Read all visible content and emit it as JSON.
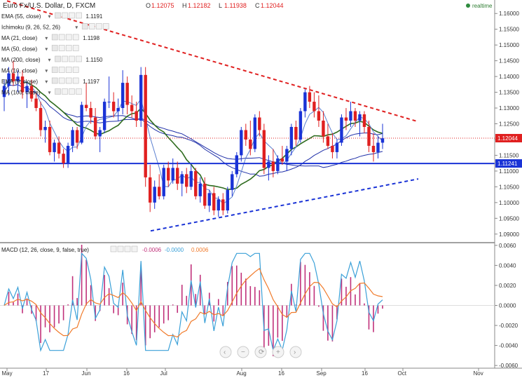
{
  "header": {
    "symbol": "Euro Fx/U.S. Dollar, D, FXCM",
    "ohlc": {
      "o_label": "O",
      "o": "1.12075",
      "h_label": "H",
      "h": "1.12182",
      "l_label": "L",
      "l": "1.11938",
      "c_label": "C",
      "c": "1.12044"
    },
    "realtime": "realtime"
  },
  "indicators": [
    {
      "label": "EMA (55, close)",
      "value": "1.1191",
      "color": "#1f3fbf"
    },
    {
      "label": "Ichimoku (9, 26, 52, 26)",
      "value": "",
      "color": "#555555"
    },
    {
      "label": "MA (21, close)",
      "value": "1.1198",
      "color": "#2e7d32"
    },
    {
      "label": "MA (50, close)",
      "value": "",
      "color": "#555555"
    },
    {
      "label": "MA (200, close)",
      "value": "1.1150",
      "color": "#1f3fbf"
    },
    {
      "label": "MA (10, close)",
      "value": "",
      "color": "#555555"
    },
    {
      "label": "EMA (9, close)",
      "value": "1.1197",
      "color": "#1f3fbf"
    },
    {
      "label": "MA (100, close)",
      "value": "",
      "color": "#555555"
    }
  ],
  "macd_legend": {
    "label": "MACD (12, 26, close, 9, false, true)",
    "v1": "-0.0006",
    "v2": "-0.0000",
    "v3": "0.0006"
  },
  "price_axis": [
    "1.16000",
    "1.15500",
    "1.15000",
    "1.14500",
    "1.14000",
    "1.13500",
    "1.13000",
    "1.12500",
    "1.12000",
    "1.11500",
    "1.11000",
    "1.10500",
    "1.10000",
    "1.09500",
    "1.09000"
  ],
  "price_badges": {
    "last": "1.12044",
    "hline": "1.11241"
  },
  "macd_axis": [
    "0.0060",
    "0.0040",
    "0.0020",
    "0.0000",
    "-0.0020",
    "-0.0040",
    "-0.0060"
  ],
  "time_axis": [
    "May",
    "17",
    "Jun",
    "16",
    "Jul",
    "Aug",
    "16",
    "Sep",
    "16",
    "Oct",
    "Nov"
  ],
  "colors": {
    "up": "#1a33d6",
    "down": "#e02020",
    "ma_green": "#2e6b1e",
    "ma_blue": "#1f2fa8",
    "macd_line": "#3aa0d8",
    "signal_line": "#f07a2a",
    "hist": "#c0307a",
    "res": "#e02020",
    "sup": "#1a33d6"
  },
  "chart_data": {
    "type": "candlestick",
    "x_axis_ticks": [
      "May",
      "17",
      "Jun",
      "16",
      "Jul",
      "Aug",
      "16",
      "Sep",
      "16",
      "Oct",
      "Nov"
    ],
    "y_axis_range": [
      1.0875,
      1.1625
    ],
    "candles_ohlc": [
      [
        1.1335,
        1.139,
        1.129,
        1.137
      ],
      [
        1.137,
        1.143,
        1.134,
        1.141
      ],
      [
        1.141,
        1.145,
        1.137,
        1.1385
      ],
      [
        1.1385,
        1.142,
        1.135,
        1.14
      ],
      [
        1.14,
        1.142,
        1.133,
        1.135
      ],
      [
        1.135,
        1.138,
        1.13,
        1.137
      ],
      [
        1.137,
        1.139,
        1.132,
        1.133
      ],
      [
        1.133,
        1.135,
        1.129,
        1.13
      ],
      [
        1.13,
        1.132,
        1.121,
        1.123
      ],
      [
        1.123,
        1.126,
        1.119,
        1.124
      ],
      [
        1.124,
        1.126,
        1.115,
        1.116
      ],
      [
        1.116,
        1.12,
        1.113,
        1.119
      ],
      [
        1.119,
        1.121,
        1.114,
        1.1155
      ],
      [
        1.1155,
        1.117,
        1.111,
        1.1125
      ],
      [
        1.1125,
        1.119,
        1.111,
        1.118
      ],
      [
        1.118,
        1.124,
        1.116,
        1.123
      ],
      [
        1.123,
        1.124,
        1.117,
        1.119
      ],
      [
        1.119,
        1.132,
        1.1185,
        1.131
      ],
      [
        1.131,
        1.138,
        1.129,
        1.13
      ],
      [
        1.13,
        1.132,
        1.125,
        1.127
      ],
      [
        1.127,
        1.13,
        1.12,
        1.121
      ],
      [
        1.121,
        1.124,
        1.116,
        1.123
      ],
      [
        1.123,
        1.133,
        1.122,
        1.132
      ],
      [
        1.132,
        1.14,
        1.13,
        1.132
      ],
      [
        1.132,
        1.135,
        1.127,
        1.129
      ],
      [
        1.129,
        1.133,
        1.126,
        1.13
      ],
      [
        1.13,
        1.142,
        1.128,
        1.138
      ],
      [
        1.138,
        1.14,
        1.128,
        1.131
      ],
      [
        1.131,
        1.134,
        1.127,
        1.129
      ],
      [
        1.129,
        1.132,
        1.124,
        1.126
      ],
      [
        1.126,
        1.143,
        1.124,
        1.1405
      ],
      [
        1.1405,
        1.143,
        1.105,
        1.108
      ],
      [
        1.108,
        1.112,
        1.097,
        1.1
      ],
      [
        1.1,
        1.107,
        1.098,
        1.105
      ],
      [
        1.105,
        1.109,
        1.101,
        1.102
      ],
      [
        1.102,
        1.112,
        1.101,
        1.111
      ],
      [
        1.111,
        1.113,
        1.105,
        1.107
      ],
      [
        1.107,
        1.114,
        1.106,
        1.111
      ],
      [
        1.111,
        1.113,
        1.104,
        1.106
      ],
      [
        1.106,
        1.11,
        1.102,
        1.109
      ],
      [
        1.109,
        1.111,
        1.103,
        1.105
      ],
      [
        1.105,
        1.112,
        1.104,
        1.11
      ],
      [
        1.11,
        1.111,
        1.101,
        1.102
      ],
      [
        1.102,
        1.108,
        1.1,
        1.106
      ],
      [
        1.106,
        1.108,
        1.098,
        1.099
      ],
      [
        1.099,
        1.104,
        1.097,
        1.103
      ],
      [
        1.103,
        1.105,
        1.096,
        1.0975
      ],
      [
        1.0975,
        1.102,
        1.0955,
        1.101
      ],
      [
        1.101,
        1.103,
        1.096,
        1.0975
      ],
      [
        1.0975,
        1.105,
        1.0965,
        1.104
      ],
      [
        1.104,
        1.11,
        1.102,
        1.109
      ],
      [
        1.109,
        1.116,
        1.108,
        1.115
      ],
      [
        1.115,
        1.124,
        1.113,
        1.123
      ],
      [
        1.123,
        1.125,
        1.118,
        1.12
      ],
      [
        1.12,
        1.126,
        1.115,
        1.117
      ],
      [
        1.117,
        1.128,
        1.116,
        1.127
      ],
      [
        1.127,
        1.129,
        1.121,
        1.123
      ],
      [
        1.123,
        1.125,
        1.109,
        1.111
      ],
      [
        1.111,
        1.115,
        1.107,
        1.113
      ],
      [
        1.113,
        1.117,
        1.108,
        1.11
      ],
      [
        1.11,
        1.115,
        1.109,
        1.114
      ],
      [
        1.114,
        1.118,
        1.112,
        1.113
      ],
      [
        1.113,
        1.118,
        1.11,
        1.117
      ],
      [
        1.117,
        1.125,
        1.115,
        1.124
      ],
      [
        1.124,
        1.126,
        1.118,
        1.12
      ],
      [
        1.12,
        1.13,
        1.119,
        1.129
      ],
      [
        1.129,
        1.136,
        1.127,
        1.135
      ],
      [
        1.135,
        1.137,
        1.13,
        1.132
      ],
      [
        1.132,
        1.135,
        1.127,
        1.129
      ],
      [
        1.129,
        1.134,
        1.124,
        1.126
      ],
      [
        1.126,
        1.129,
        1.119,
        1.121
      ],
      [
        1.121,
        1.125,
        1.117,
        1.118
      ],
      [
        1.118,
        1.122,
        1.114,
        1.116
      ],
      [
        1.116,
        1.12,
        1.114,
        1.119
      ],
      [
        1.119,
        1.128,
        1.118,
        1.127
      ],
      [
        1.127,
        1.13,
        1.123,
        1.126
      ],
      [
        1.126,
        1.132,
        1.124,
        1.129
      ],
      [
        1.129,
        1.13,
        1.124,
        1.126
      ],
      [
        1.126,
        1.129,
        1.121,
        1.128
      ],
      [
        1.128,
        1.129,
        1.122,
        1.124
      ],
      [
        1.124,
        1.126,
        1.116,
        1.118
      ],
      [
        1.118,
        1.122,
        1.113,
        1.116
      ],
      [
        1.116,
        1.121,
        1.114,
        1.119
      ],
      [
        1.119,
        1.125,
        1.117,
        1.1204
      ]
    ],
    "resistance_line": {
      "from": [
        "May",
        1.164
      ],
      "to": [
        "Oct",
        1.1258
      ]
    },
    "support_line": {
      "from": [
        "Jul",
        1.091
      ],
      "to": [
        "Oct",
        1.1075
      ]
    },
    "horizontal_level": 1.11241,
    "last_price": 1.12044,
    "macd_range": [
      -0.0062,
      0.0062
    ]
  }
}
